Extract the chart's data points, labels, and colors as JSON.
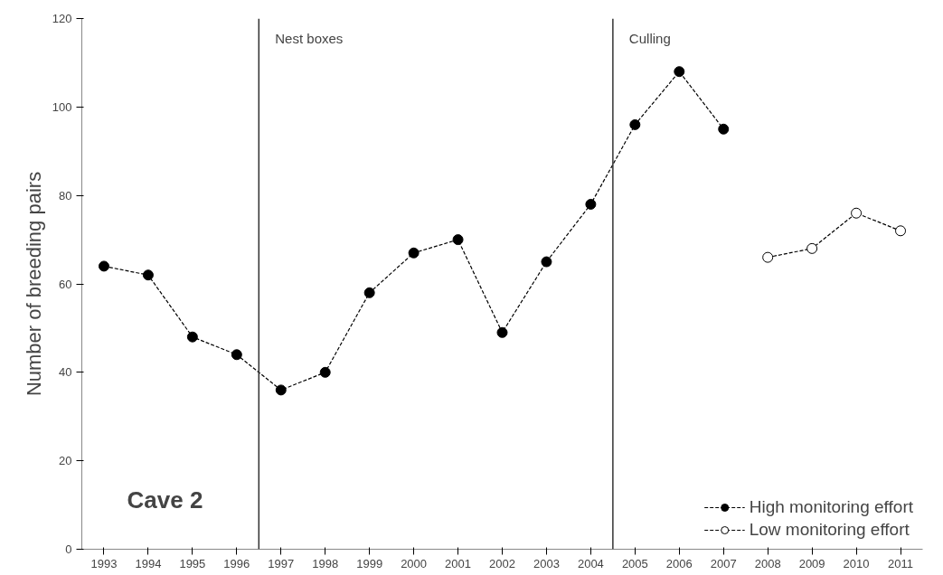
{
  "chart_data": {
    "type": "line",
    "ylabel": "Number of breeding pairs",
    "x": [
      1993,
      1994,
      1995,
      1996,
      1997,
      1998,
      1999,
      2000,
      2001,
      2002,
      2003,
      2004,
      2005,
      2006,
      2007,
      2008,
      2009,
      2010,
      2011
    ],
    "xlim": [
      1992.5,
      2011.5
    ],
    "xticks": [
      1993,
      1994,
      1995,
      1996,
      1997,
      1998,
      1999,
      2000,
      2001,
      2002,
      2003,
      2004,
      2005,
      2006,
      2007,
      2008,
      2009,
      2010,
      2011
    ],
    "ylim": [
      0,
      120
    ],
    "yticks": [
      0,
      20,
      40,
      60,
      80,
      100,
      120
    ],
    "series": [
      {
        "name": "High monitoring effort",
        "color": "#000000",
        "values": [
          64,
          62,
          48,
          44,
          36,
          40,
          58,
          67,
          70,
          49,
          65,
          78,
          96,
          108,
          95,
          null,
          null,
          null,
          null
        ]
      },
      {
        "name": "Low monitoring effort",
        "color": "#ffffff",
        "values": [
          null,
          null,
          null,
          null,
          null,
          null,
          null,
          null,
          null,
          null,
          null,
          null,
          null,
          null,
          null,
          66,
          68,
          76,
          72
        ]
      }
    ],
    "ref_lines": [
      {
        "axis": "x",
        "value": 1996.5,
        "label": "Nest boxes"
      },
      {
        "axis": "x",
        "value": 2004.5,
        "label": "Culling"
      }
    ],
    "annotations": [
      "Cave 2"
    ],
    "marker": "circle",
    "line_style": "dashed",
    "grid": false,
    "legend": "bottom right"
  }
}
